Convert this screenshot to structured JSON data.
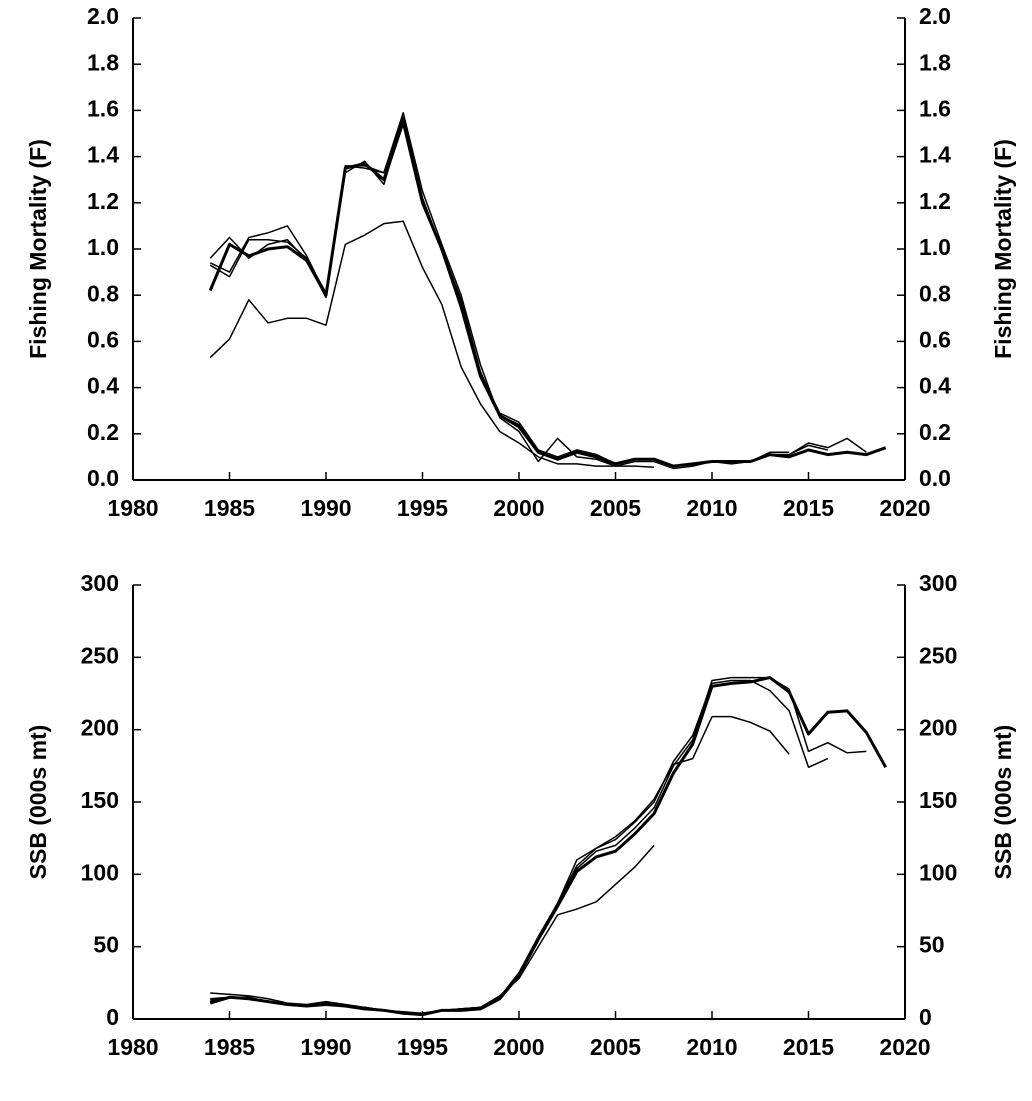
{
  "chart_data": [
    {
      "type": "line",
      "ylabel": "Fishing Mortality (F)",
      "x": [
        1984,
        1985,
        1986,
        1987,
        1988,
        1989,
        1990,
        1991,
        1992,
        1993,
        1994,
        1995,
        1996,
        1997,
        1998,
        1999,
        2000,
        2001,
        2002,
        2003,
        2004,
        2005,
        2006,
        2007,
        2008,
        2009,
        2010,
        2011,
        2012,
        2013,
        2014,
        2015,
        2016,
        2017,
        2018,
        2019
      ],
      "xlim": [
        1980,
        2020
      ],
      "xticks": [
        1980,
        1985,
        1990,
        1995,
        2000,
        2005,
        2010,
        2015,
        2020
      ],
      "ylim": [
        0,
        2
      ],
      "yticks": [
        {
          "value": 0,
          "label": "0.0"
        },
        0.2,
        0.4,
        0.6,
        0.8,
        {
          "value": 1,
          "label": "1.0"
        },
        1.2,
        1.4,
        1.6,
        1.8,
        {
          "value": 2,
          "label": "2.0"
        }
      ],
      "y2lim": [
        0,
        2
      ],
      "y2ticks": [
        {
          "value": 0,
          "label": "0.0"
        },
        0.2,
        0.4,
        0.6,
        0.8,
        {
          "value": 1,
          "label": "1.0"
        },
        1.2,
        1.4,
        1.6,
        1.8,
        {
          "value": 2,
          "label": "2.0"
        }
      ],
      "series": [
        {
          "color": "#000000",
          "width": 1.5,
          "values": [
            0.53,
            0.61,
            0.78,
            0.68,
            0.7,
            0.7,
            0.67,
            1.02,
            1.06,
            1.11,
            1.12,
            0.92,
            0.76,
            0.49,
            0.33,
            0.21,
            0.16,
            0.1,
            0.07,
            0.07,
            0.06,
            0.06,
            0.06,
            0.055,
            null,
            null,
            null,
            null,
            null,
            null,
            null,
            null,
            null,
            null,
            null,
            null
          ]
        },
        {
          "color": "#000000",
          "width": 1.5,
          "values": [
            0.96,
            1.05,
            0.96,
            1.02,
            1.04,
            0.95,
            0.79,
            1.36,
            1.35,
            1.33,
            1.59,
            1.25,
            1.02,
            0.8,
            0.5,
            0.27,
            0.21,
            0.08,
            0.18,
            0.1,
            0.09,
            0.06,
            0.08,
            0.08,
            0.05,
            0.06,
            0.08,
            0.07,
            0.08,
            0.12,
            0.12,
            null,
            null,
            null,
            null,
            null
          ]
        },
        {
          "color": "#000000",
          "width": 1.5,
          "values": [
            0.93,
            0.88,
            1.04,
            1.04,
            1.03,
            0.96,
            0.81,
            1.33,
            1.38,
            1.28,
            1.56,
            1.22,
            0.99,
            0.77,
            0.46,
            0.29,
            0.25,
            0.13,
            0.1,
            0.13,
            0.11,
            0.07,
            0.09,
            0.09,
            0.06,
            0.07,
            0.08,
            0.08,
            0.08,
            0.11,
            0.11,
            0.15,
            0.13,
            null,
            null,
            null
          ]
        },
        {
          "color": "#000000",
          "width": 1.5,
          "values": [
            0.94,
            0.9,
            1.05,
            1.07,
            1.1,
            0.97,
            0.8,
            1.36,
            1.36,
            1.33,
            1.57,
            1.22,
            1.0,
            0.78,
            0.47,
            0.28,
            0.24,
            0.12,
            0.09,
            0.13,
            0.11,
            0.07,
            0.09,
            0.09,
            0.06,
            0.07,
            0.08,
            0.08,
            0.08,
            0.11,
            0.11,
            0.16,
            0.14,
            0.18,
            0.12,
            null
          ]
        },
        {
          "color": "#000000",
          "width": 3,
          "values": [
            0.82,
            1.02,
            0.97,
            1.0,
            1.01,
            0.95,
            0.8,
            1.35,
            1.37,
            1.3,
            1.55,
            1.2,
            1.0,
            0.75,
            0.45,
            0.28,
            0.23,
            0.12,
            0.09,
            0.12,
            0.1,
            0.07,
            0.09,
            0.09,
            0.06,
            0.07,
            0.08,
            0.08,
            0.08,
            0.11,
            0.1,
            0.13,
            0.11,
            0.12,
            0.11,
            0.14
          ]
        }
      ]
    },
    {
      "type": "line",
      "ylabel": "SSB (000s mt)",
      "x": [
        1984,
        1985,
        1986,
        1987,
        1988,
        1989,
        1990,
        1991,
        1992,
        1993,
        1994,
        1995,
        1996,
        1997,
        1998,
        1999,
        2000,
        2001,
        2002,
        2003,
        2004,
        2005,
        2006,
        2007,
        2008,
        2009,
        2010,
        2011,
        2012,
        2013,
        2014,
        2015,
        2016,
        2017,
        2018,
        2019
      ],
      "xlim": [
        1980,
        2020
      ],
      "xticks": [
        1980,
        1985,
        1990,
        1995,
        2000,
        2005,
        2010,
        2015,
        2020
      ],
      "ylim": [
        0,
        300
      ],
      "yticks": [
        0,
        50,
        100,
        150,
        200,
        250,
        300
      ],
      "y2lim": [
        0,
        300
      ],
      "y2ticks": [
        0,
        50,
        100,
        150,
        200,
        250,
        300
      ],
      "series": [
        {
          "color": "#000000",
          "width": 1.5,
          "values": [
            18,
            17,
            16,
            14,
            11,
            10,
            12,
            10,
            8,
            6,
            5,
            4,
            6,
            7,
            8,
            16,
            28,
            50,
            72,
            76,
            81,
            93,
            105,
            120,
            null,
            null,
            null,
            null,
            null,
            null,
            null,
            null,
            null,
            null,
            null,
            null
          ]
        },
        {
          "color": "#000000",
          "width": 1.5,
          "values": [
            14,
            15,
            15,
            12,
            10,
            9,
            11,
            9,
            8,
            6,
            4,
            4,
            6,
            7,
            8,
            15,
            32,
            56,
            80,
            110,
            118,
            126,
            137,
            152,
            176,
            180,
            209,
            209,
            205,
            199,
            183,
            null,
            null,
            null,
            null,
            null
          ]
        },
        {
          "color": "#000000",
          "width": 1.5,
          "values": [
            13,
            15,
            15,
            12,
            10,
            9,
            11,
            9,
            8,
            6,
            4,
            4,
            6,
            7,
            8,
            15,
            32,
            57,
            80,
            106,
            118,
            124,
            136,
            150,
            178,
            196,
            232,
            234,
            234,
            227,
            213,
            174,
            180,
            null,
            null,
            null
          ]
        },
        {
          "color": "#000000",
          "width": 1.5,
          "values": [
            12,
            15,
            14,
            12,
            10,
            9,
            11,
            9,
            8,
            6,
            4,
            4,
            6,
            6,
            8,
            15,
            31,
            56,
            79,
            104,
            116,
            120,
            132,
            146,
            175,
            193,
            234,
            236,
            236,
            236,
            228,
            185,
            191,
            184,
            185,
            null
          ]
        },
        {
          "color": "#000000",
          "width": 3,
          "values": [
            11,
            15,
            14,
            12,
            10,
            9,
            10,
            9,
            7,
            6,
            4,
            3,
            6,
            6,
            7,
            14,
            30,
            55,
            78,
            102,
            112,
            116,
            128,
            142,
            170,
            190,
            230,
            232,
            233,
            236,
            226,
            197,
            212,
            213,
            198,
            174
          ]
        }
      ]
    }
  ]
}
